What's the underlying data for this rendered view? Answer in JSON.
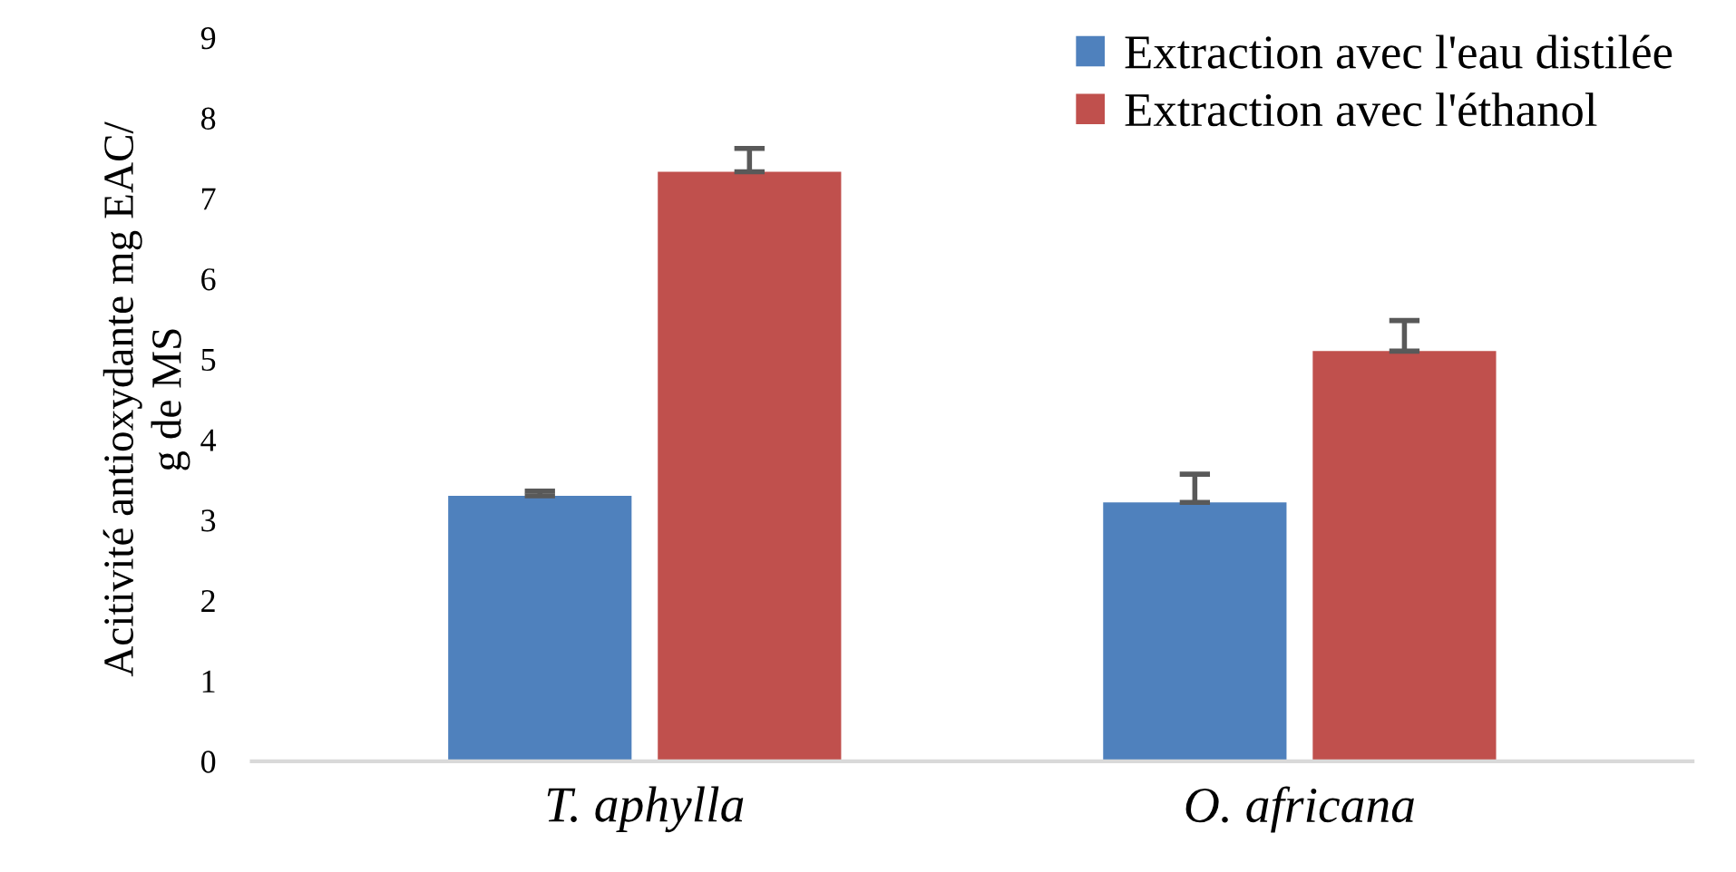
{
  "chart_data": {
    "type": "bar",
    "ylabel": "Acitivité antioxydante mg EAC/\ng de MS",
    "categories": [
      "T. aphylla",
      "O. africana"
    ],
    "series": [
      {
        "name": "Extraction avec l'eau distilée",
        "color": "#4f81bd",
        "values": [
          3.3,
          3.22
        ],
        "errors": [
          [
            3.3,
            3.36
          ],
          [
            3.22,
            3.57
          ]
        ]
      },
      {
        "name": "Extraction avec l'éthanol",
        "color": "#c0504d",
        "values": [
          7.33,
          5.1
        ],
        "errors": [
          [
            7.33,
            7.62
          ],
          [
            5.1,
            5.48
          ]
        ]
      }
    ],
    "ylim": [
      0,
      9
    ],
    "yticks": [
      0,
      1,
      2,
      3,
      4,
      5,
      6,
      7,
      8,
      9
    ],
    "grid": false,
    "legend": "top right"
  }
}
